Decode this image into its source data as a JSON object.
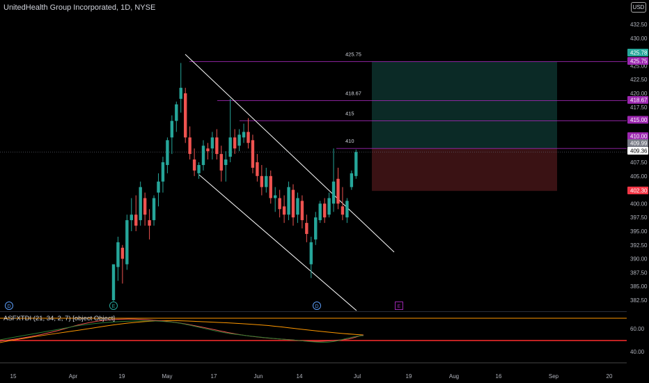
{
  "header": {
    "title": "UnitedHealth Group Incorporated, 1D, NYSE",
    "currency": "USD"
  },
  "indicator": {
    "label": "ASFXTDI (21, 34, 2, 7) [object Object]",
    "levels": [
      "60.00",
      "40.00"
    ]
  },
  "x_axis": {
    "labels": [
      "15",
      "Apr",
      "19",
      "May",
      "17",
      "Jun",
      "14",
      "Jul",
      "19",
      "Aug",
      "16",
      "Sep",
      "20"
    ]
  },
  "y_axis": {
    "labels": [
      "432.50",
      "430.00",
      "427.50",
      "425.00",
      "422.50",
      "420.00",
      "417.50",
      "415.00",
      "412.50",
      "410.00",
      "407.50",
      "405.00",
      "402.50",
      "400.00",
      "397.50",
      "395.00",
      "392.50",
      "390.00",
      "387.50",
      "385.00",
      "382.50"
    ]
  },
  "price_tags": [
    {
      "text": "425.78",
      "color": "#26a69a"
    },
    {
      "text": "425.75",
      "color": "#9c27b0"
    },
    {
      "text": "418.67",
      "color": "#9c27b0"
    },
    {
      "text": "415.00",
      "color": "#9c27b0"
    },
    {
      "text": "410.00",
      "color": "#9c27b0"
    },
    {
      "text": "409.99",
      "color": "#787b86"
    },
    {
      "text": "409.36",
      "color": "#ffffff"
    },
    {
      "text": "402.30",
      "color": "#f23645"
    }
  ],
  "level_labels": [
    "425.75",
    "418.67",
    "415",
    "410"
  ],
  "event_markers": [
    "D",
    "E",
    "D",
    "E"
  ],
  "colors": {
    "up": "#26a69a",
    "down": "#ef5350",
    "level": "#9c27b0",
    "channel": "#ffffff",
    "target_zone": "#0b2a26",
    "stop_zone": "#3a1214"
  },
  "chart_data": {
    "type": "candlestick",
    "symbol": "UnitedHealth Group Incorporated",
    "interval": "1D",
    "exchange": "NYSE",
    "ylim": [
      382.5,
      432.5
    ],
    "candles": [
      {
        "o": 382.5,
        "h": 389.0,
        "l": 382.3,
        "c": 389.0
      },
      {
        "o": 388.5,
        "h": 394.0,
        "l": 386.0,
        "c": 393.0
      },
      {
        "o": 392.0,
        "h": 392.5,
        "l": 385.5,
        "c": 390.0
      },
      {
        "o": 389.0,
        "h": 398.0,
        "l": 388.0,
        "c": 397.0
      },
      {
        "o": 397.0,
        "h": 401.0,
        "l": 395.0,
        "c": 398.0
      },
      {
        "o": 398.0,
        "h": 401.5,
        "l": 395.0,
        "c": 396.0
      },
      {
        "o": 397.0,
        "h": 404.0,
        "l": 396.0,
        "c": 403.0
      },
      {
        "o": 401.0,
        "h": 402.0,
        "l": 396.0,
        "c": 398.0
      },
      {
        "o": 397.0,
        "h": 399.0,
        "l": 393.5,
        "c": 396.0
      },
      {
        "o": 397.0,
        "h": 401.5,
        "l": 396.0,
        "c": 401.0
      },
      {
        "o": 402.0,
        "h": 405.5,
        "l": 399.5,
        "c": 404.0
      },
      {
        "o": 404.0,
        "h": 408.5,
        "l": 402.0,
        "c": 407.5
      },
      {
        "o": 407.0,
        "h": 412.0,
        "l": 405.5,
        "c": 411.5
      },
      {
        "o": 412.0,
        "h": 416.0,
        "l": 409.0,
        "c": 415.0
      },
      {
        "o": 415.0,
        "h": 418.5,
        "l": 413.0,
        "c": 418.0
      },
      {
        "o": 419.0,
        "h": 425.5,
        "l": 416.5,
        "c": 421.0
      },
      {
        "o": 420.0,
        "h": 421.0,
        "l": 411.0,
        "c": 412.0
      },
      {
        "o": 412.0,
        "h": 414.0,
        "l": 408.0,
        "c": 409.0
      },
      {
        "o": 408.0,
        "h": 410.0,
        "l": 405.0,
        "c": 406.0
      },
      {
        "o": 405.5,
        "h": 407.5,
        "l": 404.5,
        "c": 407.0
      },
      {
        "o": 407.0,
        "h": 411.5,
        "l": 406.0,
        "c": 410.5
      },
      {
        "o": 410.0,
        "h": 411.0,
        "l": 408.0,
        "c": 409.5
      },
      {
        "o": 410.0,
        "h": 413.0,
        "l": 408.0,
        "c": 412.0
      },
      {
        "o": 412.0,
        "h": 413.5,
        "l": 408.0,
        "c": 409.0
      },
      {
        "o": 409.0,
        "h": 410.5,
        "l": 404.0,
        "c": 406.0
      },
      {
        "o": 407.0,
        "h": 409.5,
        "l": 404.0,
        "c": 408.0
      },
      {
        "o": 408.5,
        "h": 419.0,
        "l": 407.5,
        "c": 412.0
      },
      {
        "o": 412.0,
        "h": 413.5,
        "l": 409.0,
        "c": 410.0
      },
      {
        "o": 410.5,
        "h": 413.5,
        "l": 409.5,
        "c": 412.5
      },
      {
        "o": 412.0,
        "h": 414.5,
        "l": 411.0,
        "c": 413.0
      },
      {
        "o": 413.0,
        "h": 415.5,
        "l": 410.0,
        "c": 411.0
      },
      {
        "o": 411.5,
        "h": 412.5,
        "l": 405.5,
        "c": 406.5
      },
      {
        "o": 407.5,
        "h": 409.0,
        "l": 404.0,
        "c": 405.0
      },
      {
        "o": 405.0,
        "h": 407.0,
        "l": 401.5,
        "c": 403.0
      },
      {
        "o": 403.0,
        "h": 406.5,
        "l": 402.0,
        "c": 405.0
      },
      {
        "o": 405.0,
        "h": 406.0,
        "l": 400.0,
        "c": 401.0
      },
      {
        "o": 401.0,
        "h": 403.0,
        "l": 398.5,
        "c": 401.5
      },
      {
        "o": 401.0,
        "h": 402.5,
        "l": 397.5,
        "c": 399.0
      },
      {
        "o": 399.5,
        "h": 401.5,
        "l": 396.5,
        "c": 398.0
      },
      {
        "o": 398.0,
        "h": 404.0,
        "l": 397.0,
        "c": 403.0
      },
      {
        "o": 402.5,
        "h": 403.5,
        "l": 396.0,
        "c": 397.5
      },
      {
        "o": 398.0,
        "h": 402.0,
        "l": 396.5,
        "c": 401.0
      },
      {
        "o": 400.5,
        "h": 401.5,
        "l": 395.5,
        "c": 397.0
      },
      {
        "o": 396.5,
        "h": 398.0,
        "l": 393.0,
        "c": 394.5
      },
      {
        "o": 389.0,
        "h": 394.0,
        "l": 386.5,
        "c": 393.0
      },
      {
        "o": 393.5,
        "h": 398.5,
        "l": 392.5,
        "c": 397.5
      },
      {
        "o": 397.0,
        "h": 400.5,
        "l": 396.5,
        "c": 400.0
      },
      {
        "o": 400.0,
        "h": 401.0,
        "l": 396.5,
        "c": 397.5
      },
      {
        "o": 398.0,
        "h": 402.0,
        "l": 397.5,
        "c": 401.0
      },
      {
        "o": 400.0,
        "h": 410.0,
        "l": 398.5,
        "c": 404.0
      },
      {
        "o": 404.5,
        "h": 406.5,
        "l": 399.0,
        "c": 400.0
      },
      {
        "o": 399.5,
        "h": 403.0,
        "l": 397.0,
        "c": 398.0
      },
      {
        "o": 397.5,
        "h": 401.0,
        "l": 396.5,
        "c": 400.5
      },
      {
        "o": 403.0,
        "h": 406.0,
        "l": 402.5,
        "c": 405.5
      },
      {
        "o": 405.0,
        "h": 409.8,
        "l": 404.5,
        "c": 409.36
      }
    ],
    "horizontal_levels": [
      425.75,
      418.67,
      415,
      410
    ],
    "last_price": 409.36,
    "position": {
      "entry": 409.99,
      "target": 425.78,
      "stop": 402.3
    },
    "indicator_series": {
      "name": "ASFXTDI",
      "range": [
        30,
        75
      ],
      "hlines": [
        70,
        50,
        40
      ]
    }
  }
}
